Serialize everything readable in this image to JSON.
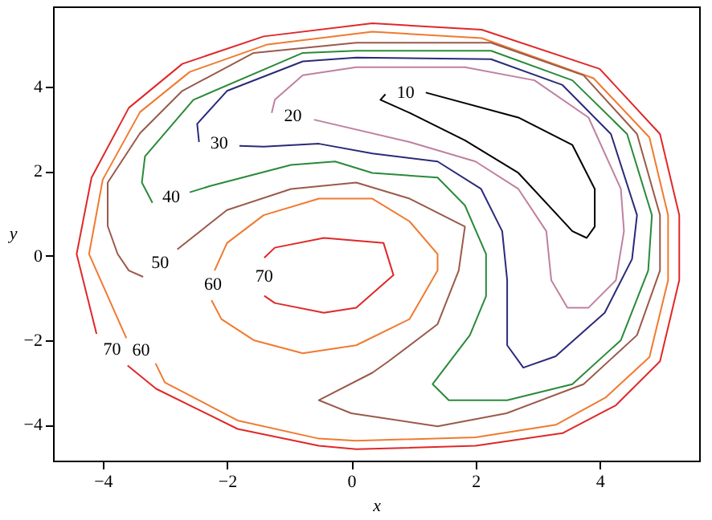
{
  "chart_data": {
    "type": "line",
    "xlabel": "x",
    "ylabel": "y",
    "xlim": [
      -4.8,
      5.6
    ],
    "ylim": [
      -4.85,
      5.9
    ],
    "xticks": [
      -4,
      -2,
      0,
      2,
      4
    ],
    "yticks": [
      -4,
      -2,
      0,
      2,
      4
    ],
    "grid": false,
    "marker": "none",
    "line_style": "solid",
    "series": [
      {
        "name": "70",
        "color": "#e02828",
        "x": [
          -3.6,
          -3.14,
          -1.83,
          -0.52,
          0.08,
          2.0,
          3.4,
          4.26,
          4.97,
          5.28,
          5.28,
          4.97,
          4.0,
          2.1,
          0.34,
          -1.41,
          -2.72,
          -3.58,
          -4.18,
          -4.42,
          -4.1
        ],
        "values": [
          -2.6,
          -3.15,
          -4.1,
          -4.5,
          -4.58,
          -4.5,
          -4.2,
          -3.54,
          -2.5,
          -0.58,
          0.96,
          2.88,
          4.42,
          5.35,
          5.5,
          5.19,
          4.54,
          3.5,
          1.85,
          0.04,
          -1.85
        ]
      },
      {
        "name": "60",
        "color": "#f07a30",
        "x": [
          -3.15,
          -3.0,
          -1.83,
          -0.52,
          0.08,
          2.0,
          3.3,
          4.1,
          4.8,
          5.1,
          5.1,
          4.8,
          3.9,
          2.1,
          0.34,
          -1.35,
          -2.6,
          -3.4,
          -4.0,
          -4.22,
          -3.62
        ],
        "values": [
          -2.55,
          -3.0,
          -3.9,
          -4.33,
          -4.38,
          -4.3,
          -4.0,
          -3.35,
          -2.4,
          -0.58,
          0.96,
          2.8,
          4.2,
          5.15,
          5.3,
          5.0,
          4.35,
          3.4,
          1.8,
          0.04,
          -1.95
        ]
      },
      {
        "name": "50",
        "color": "#9a5a4a",
        "x": [
          -2.8,
          -2.0,
          -0.97,
          0.08,
          0.94,
          1.83,
          1.73,
          1.39,
          0.6,
          0.34,
          -0.52,
          0.0,
          1.39,
          2.5,
          3.74,
          4.6,
          4.97,
          4.97,
          4.6,
          3.74,
          2.25,
          0.08,
          -1.57,
          -2.72,
          -3.4,
          -3.92,
          -3.92,
          -3.76,
          -3.58,
          -3.35
        ],
        "values": [
          0.15,
          1.08,
          1.58,
          1.73,
          1.35,
          0.69,
          -0.35,
          -1.62,
          -2.5,
          -2.77,
          -3.42,
          -3.73,
          -4.04,
          -3.73,
          -3.04,
          -1.88,
          -0.35,
          0.96,
          2.88,
          4.27,
          5.04,
          5.04,
          4.8,
          3.9,
          2.9,
          1.73,
          0.7,
          0.04,
          -0.35,
          -0.5
        ]
      },
      {
        "name": "40",
        "color": "#2a8a3a",
        "x": [
          -2.6,
          -2.27,
          -0.97,
          -0.26,
          0.34,
          1.39,
          1.83,
          2.17,
          2.17,
          1.91,
          1.31,
          1.57,
          2.51,
          3.56,
          4.34,
          4.78,
          4.84,
          4.44,
          3.56,
          2.25,
          0.08,
          -0.78,
          -2.54,
          -3.32,
          -3.37,
          -3.2
        ],
        "values": [
          1.5,
          1.65,
          2.15,
          2.23,
          1.96,
          1.85,
          1.19,
          0.04,
          -0.96,
          -1.88,
          -3.04,
          -3.42,
          -3.42,
          -3.04,
          -2.0,
          -0.35,
          0.96,
          2.88,
          4.15,
          4.85,
          4.85,
          4.8,
          3.69,
          2.35,
          1.73,
          1.25
        ]
      },
      {
        "name": "30",
        "color": "#2a2a7a",
        "x": [
          -1.8,
          -1.41,
          -0.52,
          0.34,
          1.39,
          2.09,
          2.43,
          2.51,
          2.51,
          2.77,
          3.29,
          4.08,
          4.52,
          4.6,
          4.18,
          3.4,
          2.25,
          0.08,
          -0.78,
          -2.0,
          -2.48,
          -2.45
        ],
        "values": [
          2.6,
          2.58,
          2.65,
          2.42,
          2.23,
          1.58,
          0.58,
          -0.58,
          -2.12,
          -2.65,
          -2.38,
          -1.35,
          -0.08,
          0.96,
          2.88,
          4.04,
          4.65,
          4.69,
          4.6,
          3.9,
          3.12,
          2.69
        ]
      },
      {
        "name": "20",
        "color": "#c080a0",
        "x": [
          -0.6,
          0.94,
          2.0,
          2.69,
          3.14,
          3.22,
          3.48,
          3.82,
          4.26,
          4.39,
          4.34,
          3.82,
          2.95,
          1.83,
          0.08,
          -0.78,
          -1.23,
          -1.28
        ],
        "values": [
          3.22,
          2.69,
          2.23,
          1.58,
          0.58,
          -0.58,
          -1.23,
          -1.23,
          -0.58,
          0.58,
          1.58,
          3.27,
          4.15,
          4.46,
          4.46,
          4.27,
          3.69,
          3.38
        ]
      },
      {
        "name": "10",
        "color": "#000000",
        "x": [
          1.2,
          2.69,
          3.56,
          3.92,
          3.92,
          3.79,
          3.56,
          2.69,
          1.83,
          0.94,
          0.47,
          0.55
        ],
        "values": [
          3.86,
          3.27,
          2.62,
          1.58,
          0.69,
          0.42,
          0.58,
          1.96,
          2.73,
          3.38,
          3.69,
          3.82
        ]
      },
      {
        "name": "60",
        "color": "#f07a30",
        "x": [
          -2.2,
          -2.0,
          -1.41,
          -0.52,
          0.34,
          0.94,
          1.39,
          1.39,
          0.94,
          0.08,
          -0.78,
          -1.57,
          -2.09,
          -2.25
        ],
        "values": [
          -0.35,
          0.3,
          0.96,
          1.35,
          1.35,
          0.81,
          0.04,
          -0.35,
          -1.5,
          -2.12,
          -2.31,
          -2.0,
          -1.5,
          -1.05
        ]
      },
      {
        "name": "70",
        "color": "#e02828",
        "x": [
          -1.4,
          -1.23,
          -0.44,
          0.52,
          0.68,
          0.08,
          -0.44,
          -1.23,
          -1.4
        ],
        "values": [
          -0.05,
          0.19,
          0.42,
          0.3,
          -0.46,
          -1.23,
          -1.35,
          -1.12,
          -0.95
        ]
      }
    ]
  }
}
